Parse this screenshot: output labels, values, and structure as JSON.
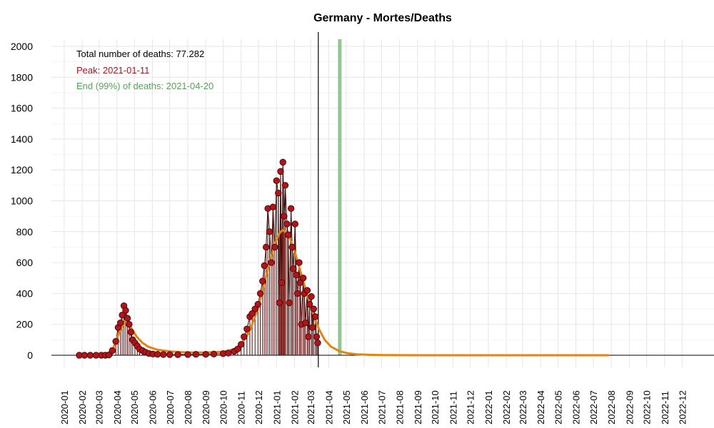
{
  "chart_data": {
    "type": "scatter",
    "title": "Germany - Mortes/Deaths",
    "xlabel": "",
    "ylabel": "",
    "ylim": [
      0,
      2000
    ],
    "yticks": [
      "0",
      "200",
      "400",
      "600",
      "800",
      "1000",
      "1200",
      "1400",
      "1600",
      "1800",
      "2000"
    ],
    "xlim": [
      "2019-12-10",
      "2023-01-25"
    ],
    "xticks": [
      "2020-01",
      "2020-02",
      "2020-03",
      "2020-04",
      "2020-05",
      "2020-06",
      "2020-07",
      "2020-08",
      "2020-09",
      "2020-10",
      "2020-11",
      "2020-12",
      "2021-01",
      "2021-02",
      "2021-03",
      "2021-04",
      "2021-05",
      "2021-06",
      "2021-07",
      "2021-08",
      "2021-09",
      "2021-10",
      "2021-11",
      "2021-12",
      "2022-01",
      "2022-02",
      "2022-03",
      "2022-04",
      "2022-05",
      "2022-06",
      "2022-07",
      "2022-08",
      "2022-09",
      "2022-10",
      "2022-11",
      "2022-12"
    ],
    "grid": true,
    "annotations": {
      "total": "Total number of deaths: 77.282",
      "peak": "Peak: 2021-01-11",
      "end": "End (99%) of deaths: 2021-04-20"
    },
    "markers": {
      "today_date": "2021-03-14",
      "peak_date": "2021-01-11",
      "end_date": "2021-04-20"
    },
    "series": [
      {
        "kind": "observed",
        "color": "#b3141b",
        "x": [
          "2020-01-27",
          "2020-02-05",
          "2020-02-15",
          "2020-02-25",
          "2020-03-05",
          "2020-03-12",
          "2020-03-18",
          "2020-03-24",
          "2020-03-30",
          "2020-04-03",
          "2020-04-07",
          "2020-04-10",
          "2020-04-13",
          "2020-04-16",
          "2020-04-19",
          "2020-04-22",
          "2020-04-25",
          "2020-04-28",
          "2020-05-02",
          "2020-05-06",
          "2020-05-10",
          "2020-05-15",
          "2020-05-20",
          "2020-05-26",
          "2020-06-02",
          "2020-06-10",
          "2020-06-20",
          "2020-07-01",
          "2020-07-15",
          "2020-08-01",
          "2020-08-15",
          "2020-09-01",
          "2020-09-15",
          "2020-10-01",
          "2020-10-10",
          "2020-10-20",
          "2020-10-26",
          "2020-11-01",
          "2020-11-06",
          "2020-11-11",
          "2020-11-16",
          "2020-11-20",
          "2020-11-25",
          "2020-11-30",
          "2020-12-04",
          "2020-12-08",
          "2020-12-11",
          "2020-12-14",
          "2020-12-17",
          "2020-12-20",
          "2020-12-23",
          "2020-12-26",
          "2020-12-29",
          "2021-01-01",
          "2021-01-04",
          "2021-01-06",
          "2021-01-08",
          "2021-01-10",
          "2021-01-12",
          "2021-01-14",
          "2021-01-16",
          "2021-01-19",
          "2021-01-21",
          "2021-01-23",
          "2021-01-26",
          "2021-01-28",
          "2021-01-30",
          "2021-02-02",
          "2021-02-04",
          "2021-02-06",
          "2021-02-09",
          "2021-02-11",
          "2021-02-13",
          "2021-02-16",
          "2021-02-18",
          "2021-02-20",
          "2021-02-23",
          "2021-02-25",
          "2021-02-27",
          "2021-03-02",
          "2021-03-04",
          "2021-03-06",
          "2021-03-09",
          "2021-03-11",
          "2021-03-13"
        ],
        "values": [
          0,
          0,
          0,
          0,
          0,
          0,
          2,
          30,
          90,
          180,
          210,
          260,
          320,
          290,
          240,
          200,
          150,
          100,
          80,
          60,
          40,
          30,
          20,
          12,
          8,
          6,
          5,
          4,
          4,
          5,
          6,
          6,
          8,
          10,
          14,
          25,
          40,
          70,
          120,
          170,
          250,
          270,
          300,
          330,
          400,
          480,
          580,
          700,
          950,
          800,
          600,
          960,
          700,
          1130,
          1050,
          340,
          1190,
          470,
          1250,
          900,
          1100,
          850,
          780,
          340,
          950,
          700,
          560,
          850,
          520,
          400,
          600,
          470,
          200,
          500,
          400,
          210,
          420,
          120,
          330,
          380,
          180,
          300,
          250,
          120,
          80
        ]
      },
      {
        "kind": "fitted",
        "color": "#e6830f",
        "x": [
          "2020-01-27",
          "2020-02-15",
          "2020-03-05",
          "2020-03-15",
          "2020-03-25",
          "2020-04-05",
          "2020-04-15",
          "2020-04-25",
          "2020-05-05",
          "2020-05-15",
          "2020-05-25",
          "2020-06-10",
          "2020-07-01",
          "2020-07-20",
          "2020-08-10",
          "2020-09-01",
          "2020-09-20",
          "2020-10-05",
          "2020-10-20",
          "2020-11-01",
          "2020-11-15",
          "2020-11-29",
          "2020-12-10",
          "2020-12-20",
          "2020-12-30",
          "2021-01-06",
          "2021-01-11",
          "2021-01-16",
          "2021-01-24",
          "2021-02-03",
          "2021-02-13",
          "2021-02-23",
          "2021-03-05",
          "2021-03-15",
          "2021-03-25",
          "2021-04-05",
          "2021-04-20",
          "2021-05-05",
          "2021-05-20",
          "2021-06-10",
          "2021-07-01",
          "2021-09-01",
          "2021-12-01",
          "2022-03-01",
          "2022-06-01",
          "2022-07-27"
        ],
        "values": [
          0,
          0,
          0,
          5,
          40,
          150,
          215,
          180,
          120,
          80,
          55,
          35,
          25,
          20,
          18,
          18,
          20,
          25,
          40,
          70,
          150,
          290,
          450,
          600,
          730,
          790,
          810,
          800,
          760,
          650,
          520,
          390,
          270,
          170,
          100,
          55,
          25,
          12,
          6,
          3,
          1,
          0,
          0,
          0,
          0,
          0
        ]
      }
    ]
  }
}
